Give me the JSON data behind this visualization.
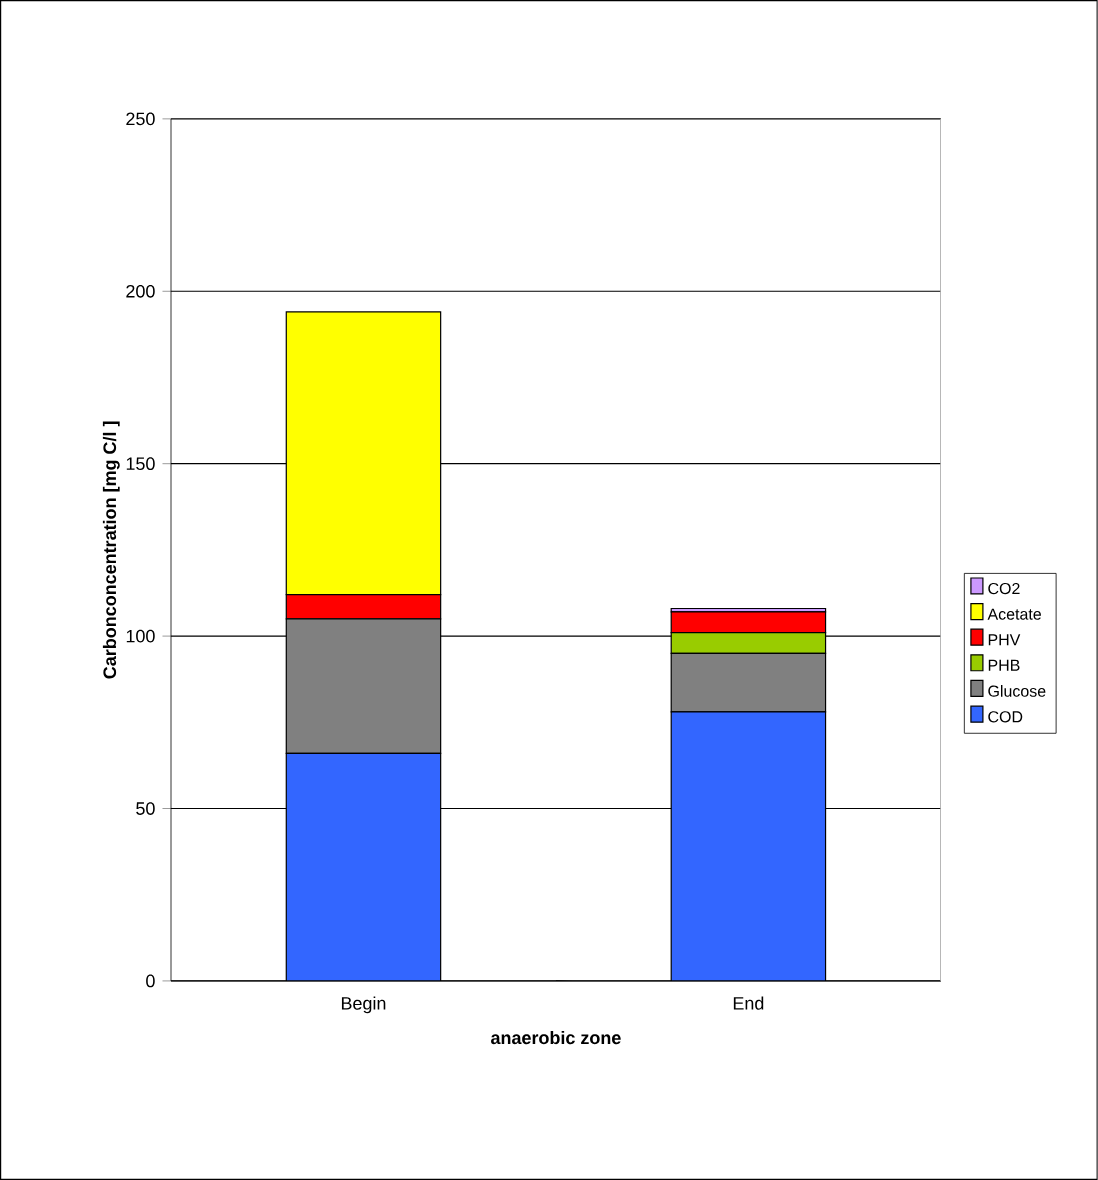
{
  "chart_data": {
    "type": "bar",
    "stacked": true,
    "xlabel": "anaerobic zone",
    "ylabel": "Carbonconcentration [mg C/l ]",
    "categories": [
      "Begin",
      "End"
    ],
    "series": [
      {
        "name": "COD",
        "color": "#3366ff",
        "values": [
          66,
          78
        ]
      },
      {
        "name": "Glucose",
        "color": "#808080",
        "values": [
          39,
          17
        ]
      },
      {
        "name": "PHB",
        "color": "#99cc00",
        "values": [
          0,
          6
        ]
      },
      {
        "name": "PHV",
        "color": "#ff0000",
        "values": [
          7,
          6
        ]
      },
      {
        "name": "Acetate",
        "color": "#ffff00",
        "values": [
          82,
          0
        ]
      },
      {
        "name": "CO2",
        "color": "#cc99ff",
        "values": [
          0,
          1
        ]
      }
    ],
    "ylim": [
      0,
      250
    ],
    "yticks": [
      0,
      50,
      100,
      150,
      200,
      250
    ],
    "grid": "y",
    "legend": "right"
  }
}
